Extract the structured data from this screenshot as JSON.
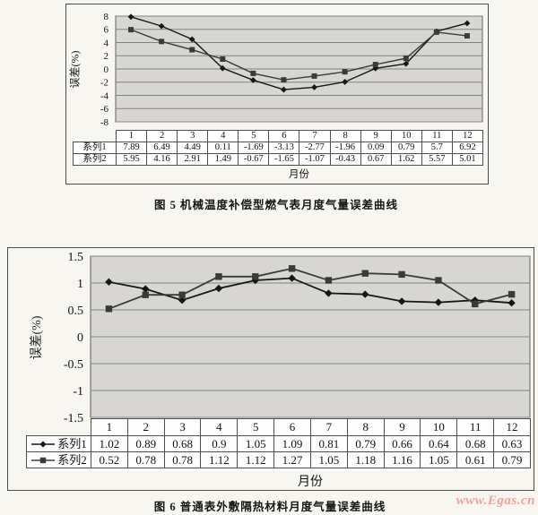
{
  "watermark": {
    "text": "www.Egas.cn",
    "color": "#eba49e"
  },
  "figures": [
    {
      "id": "fig5",
      "caption": "图 5  机械温度补偿型燃气表月度气量误差曲线",
      "ylabel": "误差(%)",
      "xlabel": "月份",
      "row_header_legend": false
    },
    {
      "id": "fig6",
      "caption": "图 6  普通表外敷隔热材料月度气量误差曲线",
      "ylabel": "误差(%)",
      "xlabel": "月份",
      "row_header_legend": true
    }
  ],
  "chart_data": [
    {
      "type": "line",
      "title": "图 5 机械温度补偿型燃气表月度气量误差曲线",
      "xlabel": "月份",
      "ylabel": "误差(%)",
      "categories": [
        "1",
        "2",
        "3",
        "4",
        "5",
        "6",
        "7",
        "8",
        "9",
        "10",
        "11",
        "12"
      ],
      "ylim": [
        -8,
        8
      ],
      "yticks": [
        "8",
        "6",
        "4",
        "2",
        "0",
        "-2",
        "-4",
        "-6",
        "-8"
      ],
      "grid": true,
      "legend_position": "data-table-row-headers",
      "plot_bg": "#d7d6d2",
      "series": [
        {
          "name": "系列1",
          "marker": "diamond",
          "color": "#161616",
          "values": [
            7.89,
            6.49,
            4.49,
            0.11,
            -1.69,
            -3.13,
            -2.77,
            -1.96,
            0.09,
            0.79,
            5.7,
            6.92
          ]
        },
        {
          "name": "系列2",
          "marker": "square",
          "color": "#3a3a3a",
          "values": [
            5.95,
            4.16,
            2.91,
            1.49,
            -0.67,
            -1.65,
            -1.07,
            -0.43,
            0.67,
            1.62,
            5.57,
            5.01
          ]
        }
      ]
    },
    {
      "type": "line",
      "title": "图 6 普通表外敷隔热材料月度气量误差曲线",
      "xlabel": "月份",
      "ylabel": "误差(%)",
      "categories": [
        "1",
        "2",
        "3",
        "4",
        "5",
        "6",
        "7",
        "8",
        "9",
        "10",
        "11",
        "12"
      ],
      "ylim": [
        -1.5,
        1.5
      ],
      "yticks": [
        "1.5",
        "1",
        "0.5",
        "0",
        "-0.5",
        "-1",
        "-1.5"
      ],
      "grid": true,
      "legend_position": "data-table-row-headers",
      "plot_bg": "#d7d6d2",
      "series": [
        {
          "name": "系列1",
          "marker": "diamond",
          "color": "#161616",
          "values": [
            1.02,
            0.89,
            0.68,
            0.9,
            1.05,
            1.09,
            0.81,
            0.79,
            0.66,
            0.64,
            0.68,
            0.63
          ]
        },
        {
          "name": "系列2",
          "marker": "square",
          "color": "#3a3a3a",
          "values": [
            0.52,
            0.78,
            0.78,
            1.12,
            1.12,
            1.27,
            1.05,
            1.18,
            1.16,
            1.05,
            0.61,
            0.79
          ]
        }
      ]
    }
  ]
}
